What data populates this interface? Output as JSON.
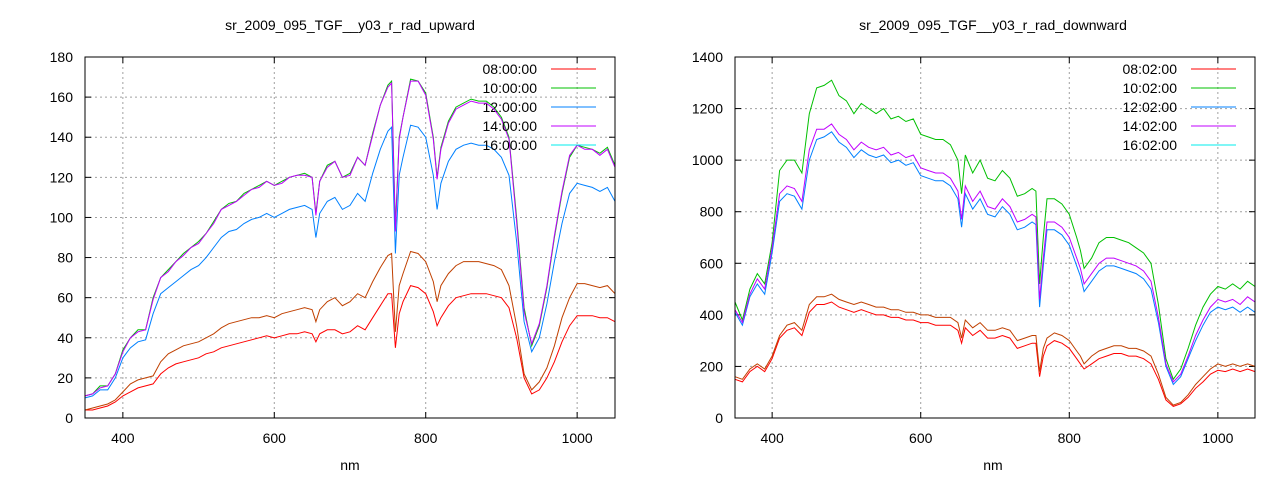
{
  "chart_data": [
    {
      "type": "line",
      "title": "sr_2009_095_TGF__y03_r_rad_upward",
      "xlabel": "nm",
      "ylabel": "",
      "xlim": [
        350,
        1050
      ],
      "ylim": [
        0,
        180
      ],
      "xticks": [
        400,
        600,
        800,
        1000
      ],
      "yticks": [
        0,
        20,
        40,
        60,
        80,
        100,
        120,
        140,
        160,
        180
      ],
      "grid": true,
      "legend_position": "top-right",
      "x": [
        350,
        360,
        370,
        380,
        390,
        400,
        410,
        420,
        430,
        440,
        450,
        460,
        470,
        480,
        490,
        500,
        510,
        520,
        530,
        540,
        550,
        560,
        570,
        580,
        590,
        600,
        610,
        620,
        630,
        640,
        650,
        655,
        660,
        670,
        680,
        690,
        700,
        710,
        720,
        730,
        740,
        750,
        755,
        760,
        765,
        770,
        780,
        790,
        800,
        810,
        815,
        820,
        830,
        840,
        850,
        860,
        870,
        880,
        890,
        900,
        910,
        920,
        930,
        940,
        950,
        960,
        970,
        980,
        990,
        1000,
        1010,
        1020,
        1030,
        1040,
        1050
      ],
      "series": [
        {
          "name": "08:00:00",
          "color": "#ff0000",
          "legend_color": "#ff0000",
          "values": [
            4,
            4,
            5,
            6,
            8,
            11,
            13,
            15,
            16,
            17,
            22,
            25,
            27,
            28,
            29,
            30,
            32,
            33,
            35,
            36,
            37,
            38,
            39,
            40,
            41,
            40,
            41,
            42,
            42,
            43,
            42,
            38,
            42,
            44,
            44,
            42,
            43,
            46,
            44,
            50,
            56,
            62,
            62,
            35,
            52,
            58,
            66,
            65,
            62,
            53,
            46,
            50,
            56,
            60,
            61,
            62,
            62,
            62,
            61,
            60,
            55,
            40,
            20,
            12,
            14,
            20,
            28,
            38,
            46,
            51,
            51,
            51,
            50,
            50,
            48
          ]
        },
        {
          "name": "10:00:00",
          "color": "#00c000",
          "legend_color": "#00c000",
          "values": [
            11,
            12,
            16,
            16,
            22,
            34,
            40,
            44,
            44,
            60,
            70,
            74,
            78,
            82,
            85,
            88,
            92,
            98,
            104,
            107,
            108,
            112,
            114,
            116,
            118,
            116,
            118,
            120,
            121,
            122,
            120,
            102,
            118,
            126,
            128,
            120,
            122,
            130,
            126,
            142,
            156,
            166,
            168,
            95,
            140,
            150,
            169,
            168,
            162,
            140,
            120,
            135,
            148,
            155,
            157,
            159,
            158,
            158,
            155,
            150,
            140,
            100,
            55,
            36,
            46,
            65,
            90,
            112,
            130,
            136,
            135,
            134,
            132,
            135,
            126
          ]
        },
        {
          "name": "12:00:00",
          "color": "#0080ff",
          "legend_color": "#0080ff",
          "values": [
            10,
            11,
            14,
            14,
            20,
            30,
            35,
            38,
            39,
            52,
            62,
            65,
            68,
            71,
            74,
            76,
            80,
            85,
            90,
            93,
            94,
            97,
            99,
            100,
            102,
            100,
            102,
            104,
            105,
            106,
            104,
            90,
            102,
            108,
            110,
            104,
            106,
            112,
            108,
            122,
            134,
            143,
            145,
            82,
            121,
            130,
            146,
            145,
            140,
            121,
            104,
            117,
            128,
            134,
            136,
            137,
            136,
            136,
            134,
            130,
            121,
            88,
            48,
            33,
            40,
            57,
            78,
            97,
            112,
            117,
            116,
            115,
            113,
            115,
            108
          ]
        },
        {
          "name": "14:00:00",
          "color": "#c000ff",
          "legend_color": "#c000ff",
          "values": [
            11,
            12,
            15,
            16,
            22,
            33,
            40,
            43,
            44,
            59,
            70,
            73,
            78,
            81,
            85,
            87,
            92,
            97,
            104,
            106,
            108,
            111,
            114,
            115,
            118,
            116,
            117,
            120,
            121,
            121,
            120,
            101,
            118,
            125,
            128,
            120,
            121,
            130,
            126,
            141,
            156,
            165,
            167,
            93,
            139,
            150,
            168,
            168,
            161,
            139,
            119,
            134,
            147,
            154,
            156,
            158,
            157,
            157,
            154,
            149,
            139,
            98,
            53,
            37,
            47,
            66,
            91,
            113,
            131,
            136,
            134,
            134,
            131,
            134,
            125
          ]
        },
        {
          "name": "16:00:00",
          "color": "#c04000",
          "legend_color": "#00eeee",
          "values": [
            4,
            5,
            6,
            7,
            9,
            13,
            17,
            19,
            20,
            21,
            28,
            32,
            34,
            36,
            37,
            38,
            40,
            42,
            45,
            47,
            48,
            49,
            50,
            50,
            51,
            50,
            52,
            53,
            54,
            55,
            54,
            48,
            54,
            58,
            60,
            56,
            58,
            62,
            60,
            68,
            75,
            81,
            82,
            43,
            66,
            72,
            83,
            82,
            78,
            68,
            58,
            66,
            72,
            76,
            78,
            78,
            78,
            77,
            76,
            74,
            66,
            46,
            22,
            14,
            18,
            25,
            36,
            50,
            60,
            67,
            67,
            66,
            65,
            66,
            62
          ]
        }
      ]
    },
    {
      "type": "line",
      "title": "sr_2009_095_TGF__y03_r_rad_downward",
      "xlabel": "nm",
      "ylabel": "",
      "xlim": [
        350,
        1050
      ],
      "ylim": [
        0,
        1400
      ],
      "xticks": [
        400,
        600,
        800,
        1000
      ],
      "yticks": [
        0,
        200,
        400,
        600,
        800,
        1000,
        1200,
        1400
      ],
      "grid": true,
      "legend_position": "top-right",
      "x": [
        350,
        360,
        370,
        380,
        390,
        400,
        410,
        420,
        430,
        440,
        450,
        460,
        470,
        480,
        490,
        500,
        510,
        520,
        530,
        540,
        550,
        560,
        570,
        580,
        590,
        600,
        610,
        620,
        630,
        640,
        650,
        655,
        660,
        670,
        680,
        690,
        700,
        710,
        720,
        730,
        740,
        750,
        755,
        760,
        765,
        770,
        780,
        790,
        800,
        810,
        815,
        820,
        830,
        840,
        850,
        860,
        870,
        880,
        890,
        900,
        910,
        920,
        930,
        940,
        950,
        960,
        970,
        980,
        990,
        1000,
        1010,
        1020,
        1030,
        1040,
        1050
      ],
      "series": [
        {
          "name": "08:02:00",
          "color": "#ff0000",
          "legend_color": "#ff0000",
          "values": [
            150,
            140,
            180,
            200,
            180,
            230,
            310,
            340,
            350,
            320,
            410,
            440,
            440,
            450,
            430,
            420,
            410,
            420,
            410,
            400,
            400,
            390,
            390,
            380,
            380,
            370,
            370,
            360,
            360,
            360,
            340,
            290,
            350,
            320,
            340,
            310,
            310,
            320,
            310,
            270,
            280,
            290,
            290,
            160,
            240,
            280,
            300,
            290,
            270,
            230,
            210,
            190,
            210,
            230,
            240,
            250,
            250,
            240,
            240,
            230,
            210,
            150,
            70,
            45,
            55,
            80,
            115,
            140,
            170,
            185,
            180,
            190,
            180,
            190,
            180
          ]
        },
        {
          "name": "10:02:00",
          "color": "#00c000",
          "legend_color": "#00c000",
          "values": [
            450,
            380,
            500,
            560,
            520,
            680,
            960,
            1000,
            1000,
            950,
            1180,
            1280,
            1290,
            1310,
            1250,
            1230,
            1180,
            1220,
            1200,
            1180,
            1200,
            1160,
            1170,
            1150,
            1160,
            1100,
            1090,
            1080,
            1080,
            1060,
            1000,
            870,
            1020,
            950,
            1000,
            930,
            920,
            960,
            930,
            860,
            870,
            890,
            880,
            520,
            700,
            850,
            850,
            830,
            790,
            700,
            650,
            580,
            620,
            680,
            700,
            700,
            690,
            680,
            660,
            640,
            600,
            440,
            230,
            150,
            190,
            270,
            360,
            430,
            480,
            510,
            500,
            520,
            500,
            530,
            510
          ]
        },
        {
          "name": "12:02:00",
          "color": "#0080ff",
          "legend_color": "#0080ff",
          "values": [
            410,
            360,
            470,
            520,
            480,
            640,
            840,
            870,
            860,
            810,
            1000,
            1080,
            1090,
            1110,
            1070,
            1050,
            1010,
            1040,
            1020,
            1010,
            1020,
            990,
            1000,
            980,
            990,
            940,
            930,
            920,
            920,
            900,
            850,
            740,
            870,
            810,
            850,
            790,
            780,
            820,
            790,
            730,
            740,
            760,
            750,
            430,
            590,
            730,
            730,
            710,
            670,
            590,
            550,
            490,
            530,
            570,
            590,
            590,
            580,
            570,
            560,
            540,
            500,
            370,
            200,
            130,
            160,
            230,
            300,
            360,
            410,
            430,
            420,
            430,
            410,
            430,
            410
          ]
        },
        {
          "name": "14:02:00",
          "color": "#c000ff",
          "legend_color": "#c000ff",
          "values": [
            420,
            370,
            480,
            540,
            500,
            660,
            870,
            900,
            890,
            840,
            1040,
            1120,
            1120,
            1140,
            1100,
            1080,
            1040,
            1070,
            1050,
            1040,
            1050,
            1020,
            1030,
            1010,
            1020,
            970,
            960,
            950,
            950,
            930,
            880,
            770,
            900,
            840,
            880,
            820,
            810,
            850,
            820,
            760,
            770,
            790,
            780,
            460,
            620,
            760,
            760,
            740,
            700,
            620,
            580,
            520,
            560,
            600,
            620,
            620,
            610,
            600,
            590,
            570,
            530,
            390,
            210,
            140,
            170,
            240,
            320,
            380,
            430,
            460,
            450,
            460,
            440,
            470,
            450
          ]
        },
        {
          "name": "16:02:00",
          "color": "#c04000",
          "legend_color": "#00eeee",
          "values": [
            160,
            150,
            190,
            210,
            190,
            240,
            320,
            360,
            370,
            340,
            440,
            470,
            470,
            480,
            460,
            450,
            440,
            450,
            440,
            430,
            430,
            420,
            420,
            410,
            410,
            400,
            400,
            390,
            390,
            390,
            370,
            310,
            380,
            350,
            370,
            340,
            340,
            350,
            340,
            300,
            310,
            320,
            320,
            180,
            270,
            310,
            330,
            320,
            300,
            260,
            240,
            210,
            240,
            260,
            270,
            280,
            280,
            270,
            270,
            260,
            240,
            170,
            80,
            50,
            60,
            90,
            130,
            160,
            190,
            210,
            200,
            210,
            200,
            210,
            200
          ]
        }
      ]
    }
  ]
}
